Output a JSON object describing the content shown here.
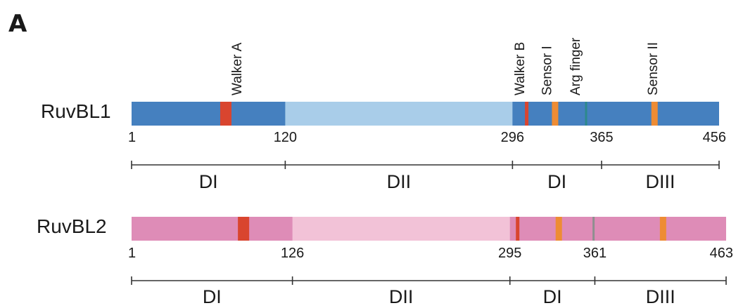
{
  "panel_label": "A",
  "colors": {
    "ruvbl1_dark": "#4580bf",
    "ruvbl1_light": "#a9cde9",
    "ruvbl2_dark": "#de8cb7",
    "ruvbl2_light": "#f2c2d7",
    "walker": "#d9452f",
    "sensor": "#ee8c34",
    "arg_finger_1": "#2d8a8c",
    "arg_finger_2": "#8f8f8f"
  },
  "motif_labels": [
    "Walker A",
    "Walker B",
    "Sensor I",
    "Arg finger",
    "Sensor II"
  ],
  "proteins": [
    {
      "name": "RuvBL1",
      "length": 456,
      "ticks": [
        "1",
        "120",
        "296",
        "365",
        "456"
      ],
      "light_region": [
        120,
        296
      ],
      "motifs": [
        {
          "type": "walker",
          "pos": 74
        },
        {
          "type": "walker",
          "pos": 307
        },
        {
          "type": "sensor",
          "pos": 329
        },
        {
          "type": "arg_finger_1",
          "pos": 353
        },
        {
          "type": "sensor",
          "pos": 406
        }
      ],
      "domains": [
        {
          "label": "DI",
          "start": 1,
          "end": 120
        },
        {
          "label": "DII",
          "start": 120,
          "end": 296
        },
        {
          "label": "DI",
          "start": 296,
          "end": 365
        },
        {
          "label": "DIII",
          "start": 365,
          "end": 456
        }
      ]
    },
    {
      "name": "RuvBL2",
      "length": 463,
      "ticks": [
        "1",
        "126",
        "295",
        "361",
        "463"
      ],
      "light_region": [
        126,
        295
      ],
      "motifs": [
        {
          "type": "walker",
          "pos": 88
        },
        {
          "type": "walker",
          "pos": 301
        },
        {
          "type": "sensor",
          "pos": 333
        },
        {
          "type": "arg_finger_2",
          "pos": 360
        },
        {
          "type": "sensor",
          "pos": 414
        }
      ],
      "domains": [
        {
          "label": "DI",
          "start": 1,
          "end": 126
        },
        {
          "label": "DII",
          "start": 126,
          "end": 295
        },
        {
          "label": "DI",
          "start": 295,
          "end": 361
        },
        {
          "label": "DIII",
          "start": 361,
          "end": 463
        }
      ]
    }
  ]
}
